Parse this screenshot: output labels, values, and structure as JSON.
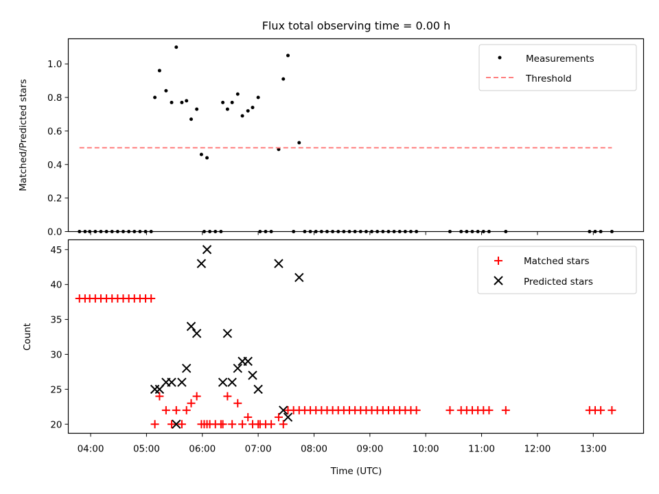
{
  "figure": {
    "title": "Flux total observing time = 0.00 h"
  },
  "colors": {
    "measurements": "#000000",
    "threshold": "#ff7f7f",
    "matched": "#ff0000",
    "predicted": "#000000"
  },
  "chart_data": [
    {
      "type": "scatter",
      "ylabel": "Matched/Predicted stars",
      "xlabel": "",
      "xlim": [
        "03:36",
        "13:54"
      ],
      "ylim": [
        0,
        1.15
      ],
      "yticks": [
        0.0,
        0.2,
        0.4,
        0.6,
        0.8,
        1.0
      ],
      "ytick_labels": [
        "0.0",
        "0.2",
        "0.4",
        "0.6",
        "0.8",
        "1.0"
      ],
      "legend_position": "top-right",
      "series": [
        {
          "name": "Measurements",
          "marker": "dot",
          "points": [
            [
              "03:48",
              0
            ],
            [
              "03:54",
              0
            ],
            [
              "03:59",
              0
            ],
            [
              "04:05",
              0
            ],
            [
              "04:11",
              0
            ],
            [
              "04:17",
              0
            ],
            [
              "04:23",
              0
            ],
            [
              "04:29",
              0
            ],
            [
              "04:35",
              0
            ],
            [
              "04:41",
              0
            ],
            [
              "04:47",
              0
            ],
            [
              "04:53",
              0
            ],
            [
              "04:59",
              0
            ],
            [
              "05:05",
              0
            ],
            [
              "05:09",
              0.8
            ],
            [
              "05:14",
              0.96
            ],
            [
              "05:21",
              0.84
            ],
            [
              "05:27",
              0.77
            ],
            [
              "05:32",
              1.1
            ],
            [
              "05:38",
              0.77
            ],
            [
              "05:43",
              0.78
            ],
            [
              "05:48",
              0.67
            ],
            [
              "05:54",
              0.73
            ],
            [
              "05:59",
              0.46
            ],
            [
              "06:05",
              0.44
            ],
            [
              "06:02",
              0
            ],
            [
              "06:08",
              0
            ],
            [
              "06:14",
              0
            ],
            [
              "06:20",
              0
            ],
            [
              "06:22",
              0.77
            ],
            [
              "06:27",
              0.73
            ],
            [
              "06:32",
              0.77
            ],
            [
              "06:38",
              0.82
            ],
            [
              "06:43",
              0.69
            ],
            [
              "06:49",
              0.72
            ],
            [
              "06:54",
              0.74
            ],
            [
              "07:00",
              0.8
            ],
            [
              "07:02",
              0
            ],
            [
              "07:08",
              0
            ],
            [
              "07:14",
              0
            ],
            [
              "07:22",
              0.49
            ],
            [
              "07:27",
              0.91
            ],
            [
              "07:32",
              1.05
            ],
            [
              "07:44",
              0.53
            ],
            [
              "07:38",
              0
            ],
            [
              "07:50",
              0
            ],
            [
              "07:56",
              0
            ],
            [
              "08:02",
              0
            ],
            [
              "08:08",
              0
            ],
            [
              "08:14",
              0
            ],
            [
              "08:20",
              0
            ],
            [
              "08:26",
              0
            ],
            [
              "08:32",
              0
            ],
            [
              "08:38",
              0
            ],
            [
              "08:44",
              0
            ],
            [
              "08:50",
              0
            ],
            [
              "08:56",
              0
            ],
            [
              "09:02",
              0
            ],
            [
              "09:08",
              0
            ],
            [
              "09:14",
              0
            ],
            [
              "09:20",
              0
            ],
            [
              "09:26",
              0
            ],
            [
              "09:32",
              0
            ],
            [
              "09:38",
              0
            ],
            [
              "09:44",
              0
            ],
            [
              "09:50",
              0
            ],
            [
              "10:26",
              0
            ],
            [
              "10:38",
              0
            ],
            [
              "10:44",
              0
            ],
            [
              "10:50",
              0
            ],
            [
              "10:56",
              0
            ],
            [
              "11:02",
              0
            ],
            [
              "11:08",
              0
            ],
            [
              "11:26",
              0
            ],
            [
              "12:56",
              0
            ],
            [
              "13:02",
              0
            ],
            [
              "13:08",
              0
            ],
            [
              "13:20",
              0
            ]
          ]
        },
        {
          "name": "Threshold",
          "style": "dashed",
          "points": [
            [
              "03:48",
              0.5
            ],
            [
              "13:20",
              0.5
            ]
          ]
        }
      ]
    },
    {
      "type": "scatter",
      "ylabel": "Count",
      "xlabel": "Time (UTC)",
      "xlim": [
        "03:36",
        "13:54"
      ],
      "ylim": [
        18.7,
        46.4
      ],
      "yticks": [
        20,
        25,
        30,
        35,
        40,
        45
      ],
      "ytick_labels": [
        "20",
        "25",
        "30",
        "35",
        "40",
        "45"
      ],
      "xticks": [
        "04:00",
        "05:00",
        "06:00",
        "07:00",
        "08:00",
        "09:00",
        "10:00",
        "11:00",
        "12:00",
        "13:00"
      ],
      "legend_position": "top-right",
      "series": [
        {
          "name": "Matched stars",
          "marker": "plus",
          "points": [
            [
              "03:48",
              38
            ],
            [
              "03:54",
              38
            ],
            [
              "03:59",
              38
            ],
            [
              "04:05",
              38
            ],
            [
              "04:11",
              38
            ],
            [
              "04:17",
              38
            ],
            [
              "04:23",
              38
            ],
            [
              "04:29",
              38
            ],
            [
              "04:35",
              38
            ],
            [
              "04:41",
              38
            ],
            [
              "04:47",
              38
            ],
            [
              "04:53",
              38
            ],
            [
              "04:59",
              38
            ],
            [
              "05:05",
              38
            ],
            [
              "05:09",
              20
            ],
            [
              "05:14",
              24
            ],
            [
              "05:21",
              22
            ],
            [
              "05:27",
              20
            ],
            [
              "05:32",
              22
            ],
            [
              "05:38",
              20
            ],
            [
              "05:43",
              22
            ],
            [
              "05:48",
              23
            ],
            [
              "05:54",
              24
            ],
            [
              "05:59",
              20
            ],
            [
              "06:05",
              20
            ],
            [
              "06:02",
              20
            ],
            [
              "06:08",
              20
            ],
            [
              "06:14",
              20
            ],
            [
              "06:20",
              20
            ],
            [
              "06:22",
              20
            ],
            [
              "06:27",
              24
            ],
            [
              "06:32",
              20
            ],
            [
              "06:38",
              23
            ],
            [
              "06:43",
              20
            ],
            [
              "06:49",
              21
            ],
            [
              "06:54",
              20
            ],
            [
              "07:00",
              20
            ],
            [
              "07:02",
              20
            ],
            [
              "07:08",
              20
            ],
            [
              "07:14",
              20
            ],
            [
              "07:22",
              21
            ],
            [
              "07:27",
              20
            ],
            [
              "07:32",
              22
            ],
            [
              "07:44",
              22
            ],
            [
              "07:38",
              22
            ],
            [
              "07:50",
              22
            ],
            [
              "07:56",
              22
            ],
            [
              "08:02",
              22
            ],
            [
              "08:08",
              22
            ],
            [
              "08:14",
              22
            ],
            [
              "08:20",
              22
            ],
            [
              "08:26",
              22
            ],
            [
              "08:32",
              22
            ],
            [
              "08:38",
              22
            ],
            [
              "08:44",
              22
            ],
            [
              "08:50",
              22
            ],
            [
              "08:56",
              22
            ],
            [
              "09:02",
              22
            ],
            [
              "09:08",
              22
            ],
            [
              "09:14",
              22
            ],
            [
              "09:20",
              22
            ],
            [
              "09:26",
              22
            ],
            [
              "09:32",
              22
            ],
            [
              "09:38",
              22
            ],
            [
              "09:44",
              22
            ],
            [
              "09:50",
              22
            ],
            [
              "10:26",
              22
            ],
            [
              "10:38",
              22
            ],
            [
              "10:44",
              22
            ],
            [
              "10:50",
              22
            ],
            [
              "10:56",
              22
            ],
            [
              "11:02",
              22
            ],
            [
              "11:08",
              22
            ],
            [
              "11:26",
              22
            ],
            [
              "12:56",
              22
            ],
            [
              "13:02",
              22
            ],
            [
              "13:08",
              22
            ],
            [
              "13:20",
              22
            ]
          ]
        },
        {
          "name": "Predicted stars",
          "marker": "x",
          "points": [
            [
              "05:09",
              25
            ],
            [
              "05:14",
              25
            ],
            [
              "05:21",
              26
            ],
            [
              "05:27",
              26
            ],
            [
              "05:32",
              20
            ],
            [
              "05:38",
              26
            ],
            [
              "05:43",
              28
            ],
            [
              "05:48",
              34
            ],
            [
              "05:54",
              33
            ],
            [
              "05:59",
              43
            ],
            [
              "06:05",
              45
            ],
            [
              "06:22",
              26
            ],
            [
              "06:27",
              33
            ],
            [
              "06:32",
              26
            ],
            [
              "06:38",
              28
            ],
            [
              "06:43",
              29
            ],
            [
              "06:49",
              29
            ],
            [
              "06:54",
              27
            ],
            [
              "07:00",
              25
            ],
            [
              "07:22",
              43
            ],
            [
              "07:27",
              22
            ],
            [
              "07:32",
              21
            ],
            [
              "07:44",
              41
            ]
          ]
        }
      ]
    }
  ]
}
